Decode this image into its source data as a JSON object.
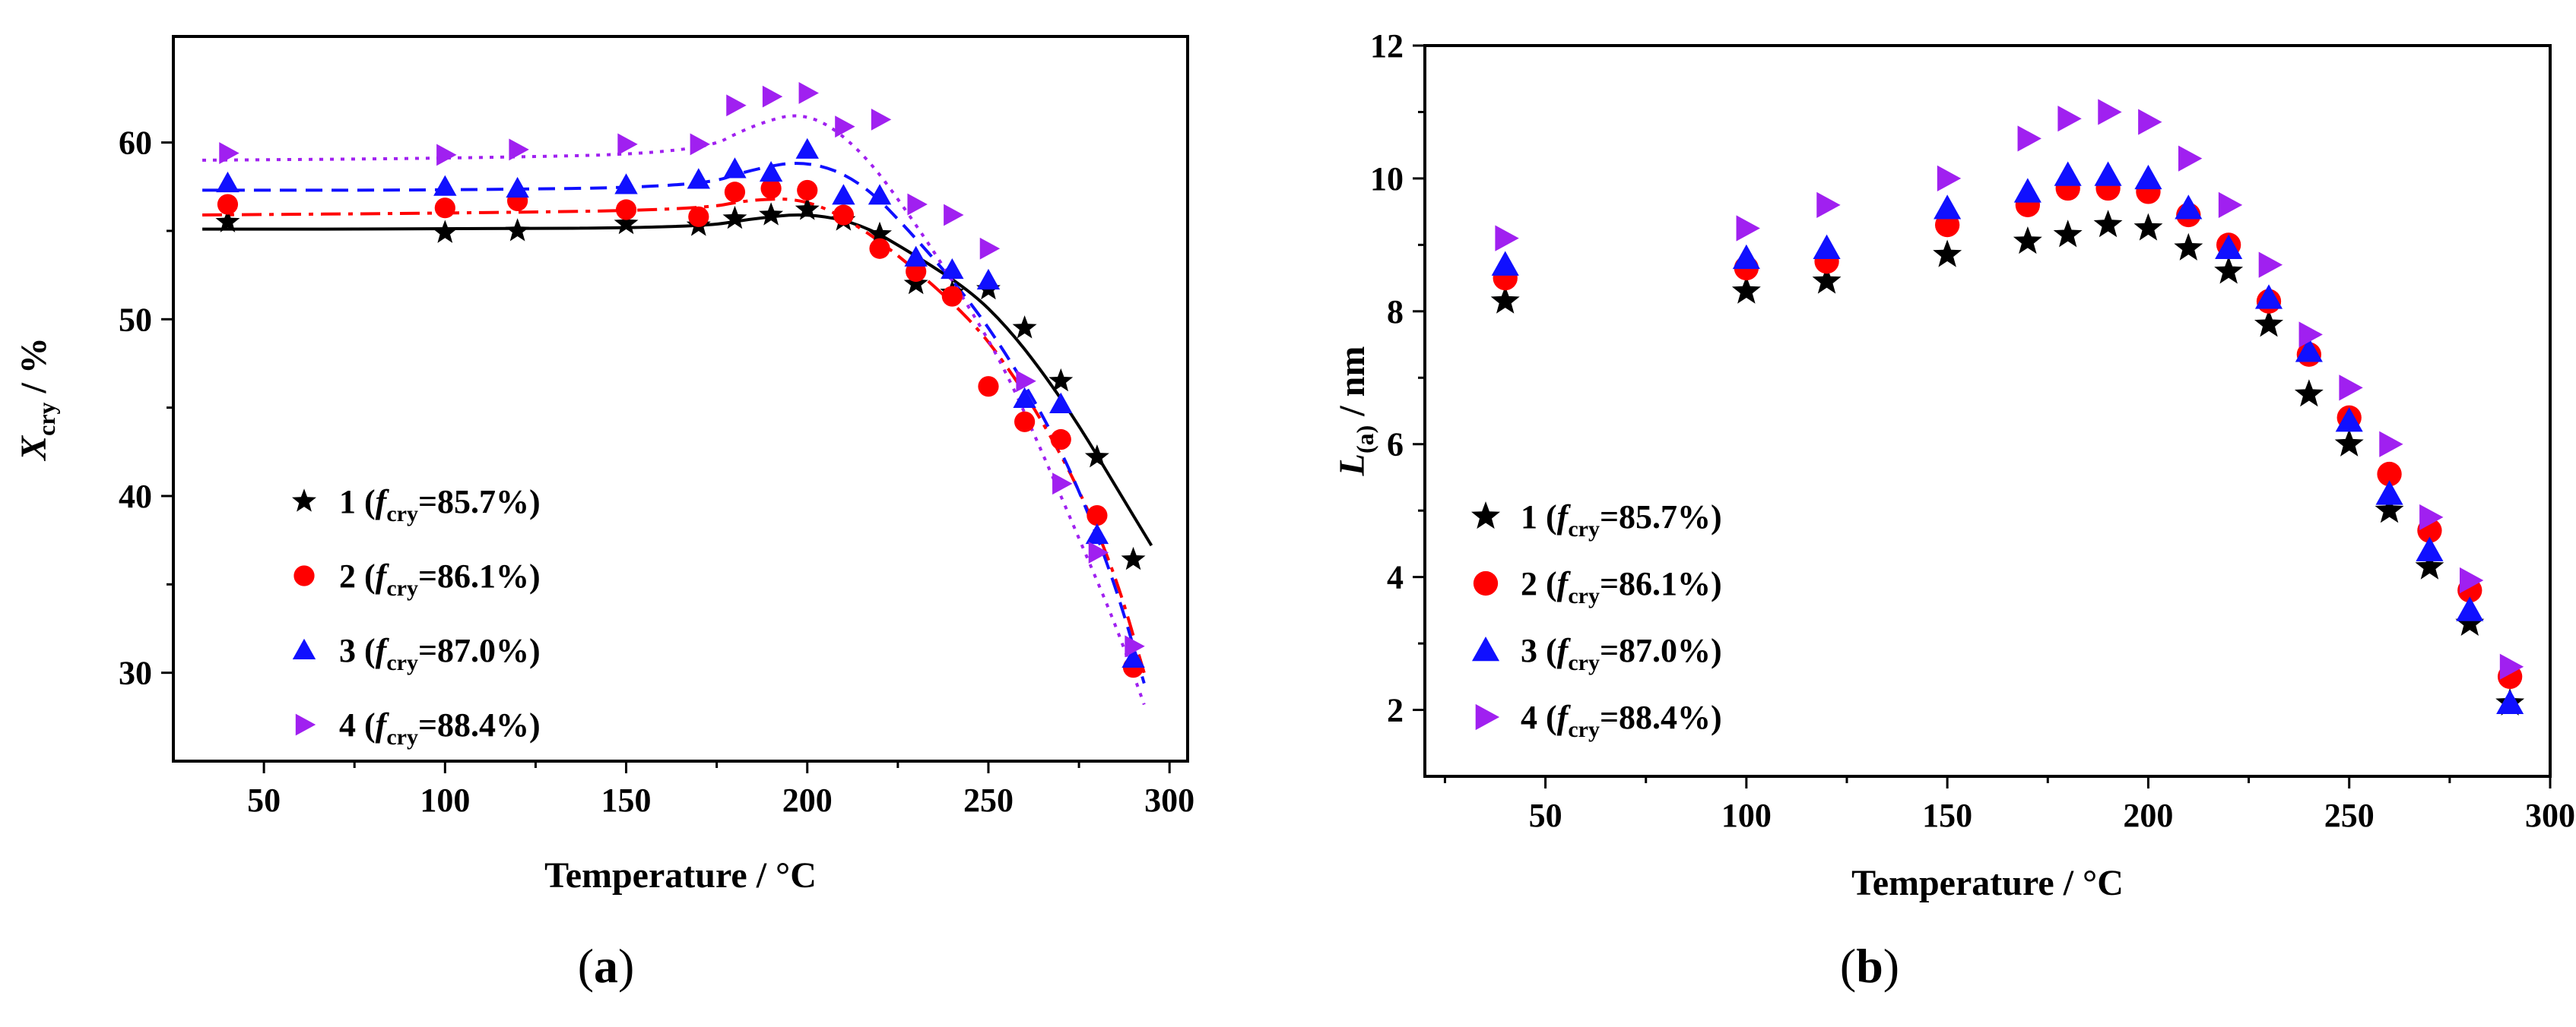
{
  "chart_data": [
    {
      "panel": "(a)",
      "panel_letter": "a",
      "type": "scatter",
      "title": "",
      "xlabel": "Temperature / °C",
      "ylabel_main": "X",
      "ylabel_sub": "cry",
      "ylabel_tail": " / %",
      "xlim": [
        25,
        305
      ],
      "ylim": [
        25,
        66
      ],
      "xticks": [
        50,
        100,
        150,
        200,
        250,
        300
      ],
      "yticks": [
        30,
        40,
        50,
        60
      ],
      "grid": false,
      "legend_position": "bottom-left",
      "x": [
        40,
        100,
        120,
        150,
        170,
        180,
        190,
        200,
        210,
        220,
        230,
        240,
        250,
        260,
        270,
        280,
        290
      ],
      "series": [
        {
          "name": "1",
          "legend_num": "1",
          "legend_f": "f",
          "legend_sub": "cry",
          "legend_val": "=85.7%)",
          "marker": "star",
          "color": "#000000",
          "values": [
            55.5,
            54.9,
            55.0,
            55.4,
            55.3,
            55.7,
            55.9,
            56.2,
            55.6,
            54.8,
            52.0,
            51.5,
            51.7,
            49.5,
            46.5,
            42.2,
            36.4
          ],
          "fit": {
            "style": "solid",
            "points": [
              [
                33,
                55.1
              ],
              [
                100,
                55.1
              ],
              [
                170,
                55.2
              ],
              [
                185,
                55.7
              ],
              [
                200,
                56.0
              ],
              [
                215,
                55.4
              ],
              [
                230,
                53.6
              ],
              [
                245,
                51.6
              ],
              [
                255,
                49.6
              ],
              [
                265,
                47.0
              ],
              [
                275,
                44.0
              ],
              [
                285,
                40.6
              ],
              [
                295,
                37.2
              ]
            ]
          }
        },
        {
          "name": "2",
          "legend_num": "2",
          "legend_f": "f",
          "legend_sub": "cry",
          "legend_val": "=86.1%)",
          "marker": "circle",
          "color": "#ff0000",
          "values": [
            56.5,
            56.3,
            56.7,
            56.2,
            55.8,
            57.2,
            57.4,
            57.3,
            55.9,
            54.0,
            52.7,
            51.3,
            46.2,
            44.2,
            43.2,
            38.9,
            30.3
          ],
          "fit": {
            "style": "dashdot",
            "points": [
              [
                33,
                55.9
              ],
              [
                100,
                56.0
              ],
              [
                170,
                56.2
              ],
              [
                185,
                56.8
              ],
              [
                200,
                56.8
              ],
              [
                215,
                55.2
              ],
              [
                230,
                52.8
              ],
              [
                245,
                50.0
              ],
              [
                255,
                47.4
              ],
              [
                265,
                44.2
              ],
              [
                275,
                40.4
              ],
              [
                285,
                35.6
              ],
              [
                293,
                30.0
              ]
            ]
          }
        },
        {
          "name": "3",
          "legend_num": "3",
          "legend_f": "f",
          "legend_sub": "cry",
          "legend_val": "=87.0%)",
          "marker": "triangle-up",
          "color": "#1010ff",
          "values": [
            57.7,
            57.5,
            57.4,
            57.6,
            57.9,
            58.5,
            58.3,
            59.6,
            57.0,
            57.0,
            53.5,
            52.8,
            52.2,
            45.5,
            45.2,
            37.8,
            30.8
          ],
          "fit": {
            "style": "dashed",
            "points": [
              [
                33,
                57.3
              ],
              [
                100,
                57.3
              ],
              [
                170,
                57.5
              ],
              [
                185,
                58.5
              ],
              [
                200,
                59.0
              ],
              [
                215,
                57.8
              ],
              [
                230,
                54.6
              ],
              [
                245,
                51.0
              ],
              [
                255,
                48.0
              ],
              [
                265,
                44.6
              ],
              [
                275,
                40.4
              ],
              [
                285,
                35.0
              ],
              [
                293,
                29.4
              ]
            ]
          }
        },
        {
          "name": "4",
          "legend_num": "4",
          "legend_f": "f",
          "legend_sub": "cry",
          "legend_val": "=88.4%)",
          "marker": "triangle-right",
          "color": "#a020f0",
          "values": [
            59.4,
            59.3,
            59.6,
            59.9,
            59.9,
            62.1,
            62.6,
            62.8,
            60.9,
            61.3,
            56.5,
            55.9,
            54.0,
            46.5,
            40.7,
            36.8,
            31.5
          ],
          "fit": {
            "style": "dotted",
            "points": [
              [
                33,
                59.0
              ],
              [
                100,
                59.1
              ],
              [
                170,
                59.4
              ],
              [
                185,
                61.0
              ],
              [
                200,
                61.8
              ],
              [
                215,
                59.6
              ],
              [
                230,
                55.4
              ],
              [
                245,
                50.6
              ],
              [
                255,
                47.0
              ],
              [
                265,
                42.4
              ],
              [
                275,
                37.6
              ],
              [
                285,
                32.8
              ],
              [
                293,
                28.2
              ]
            ]
          }
        }
      ]
    },
    {
      "panel": "(b)",
      "panel_letter": "b",
      "type": "scatter",
      "title": "",
      "xlabel": "Temperature / °C",
      "ylabel_main": "L",
      "ylabel_sub": "(a)",
      "ylabel_tail": " / nm",
      "xlim": [
        20,
        300
      ],
      "ylim": [
        1,
        12
      ],
      "xticks": [
        50,
        100,
        150,
        200,
        250,
        300
      ],
      "yticks": [
        2,
        4,
        6,
        8,
        10,
        12
      ],
      "grid": false,
      "legend_position": "bottom-left",
      "x": [
        40,
        100,
        120,
        150,
        170,
        180,
        190,
        200,
        210,
        220,
        230,
        240,
        250,
        260,
        270,
        280,
        290
      ],
      "series": [
        {
          "name": "1",
          "legend_num": "1",
          "legend_f": "f",
          "legend_sub": "cry",
          "legend_val": "=85.7%)",
          "marker": "star",
          "color": "#000000",
          "values": [
            8.15,
            8.3,
            8.45,
            8.85,
            9.05,
            9.15,
            9.3,
            9.25,
            8.95,
            8.6,
            7.8,
            6.75,
            6.0,
            5.0,
            4.15,
            3.3,
            2.1
          ]
        },
        {
          "name": "2",
          "legend_num": "2",
          "legend_f": "f",
          "legend_sub": "cry",
          "legend_val": "=86.1%)",
          "marker": "circle",
          "color": "#ff0000",
          "values": [
            8.5,
            8.65,
            8.75,
            9.3,
            9.6,
            9.85,
            9.85,
            9.8,
            9.45,
            9.0,
            8.15,
            7.35,
            6.4,
            5.55,
            4.7,
            3.8,
            2.5
          ]
        },
        {
          "name": "3",
          "legend_num": "3",
          "legend_f": "f",
          "legend_sub": "cry",
          "legend_val": "=87.0%)",
          "marker": "triangle-up",
          "color": "#1010ff",
          "values": [
            8.7,
            8.8,
            8.95,
            9.55,
            9.8,
            10.05,
            10.05,
            10.0,
            9.55,
            8.95,
            8.2,
            7.4,
            6.35,
            5.25,
            4.4,
            3.5,
            2.1
          ]
        },
        {
          "name": "4",
          "legend_num": "4",
          "legend_f": "f",
          "legend_sub": "cry",
          "legend_val": "=88.4%)",
          "marker": "triangle-right",
          "color": "#a020f0",
          "values": [
            9.1,
            9.25,
            9.6,
            10.0,
            10.6,
            10.9,
            11.0,
            10.85,
            10.3,
            9.6,
            8.7,
            7.65,
            6.85,
            6.0,
            4.9,
            3.95,
            2.65
          ]
        }
      ]
    }
  ]
}
